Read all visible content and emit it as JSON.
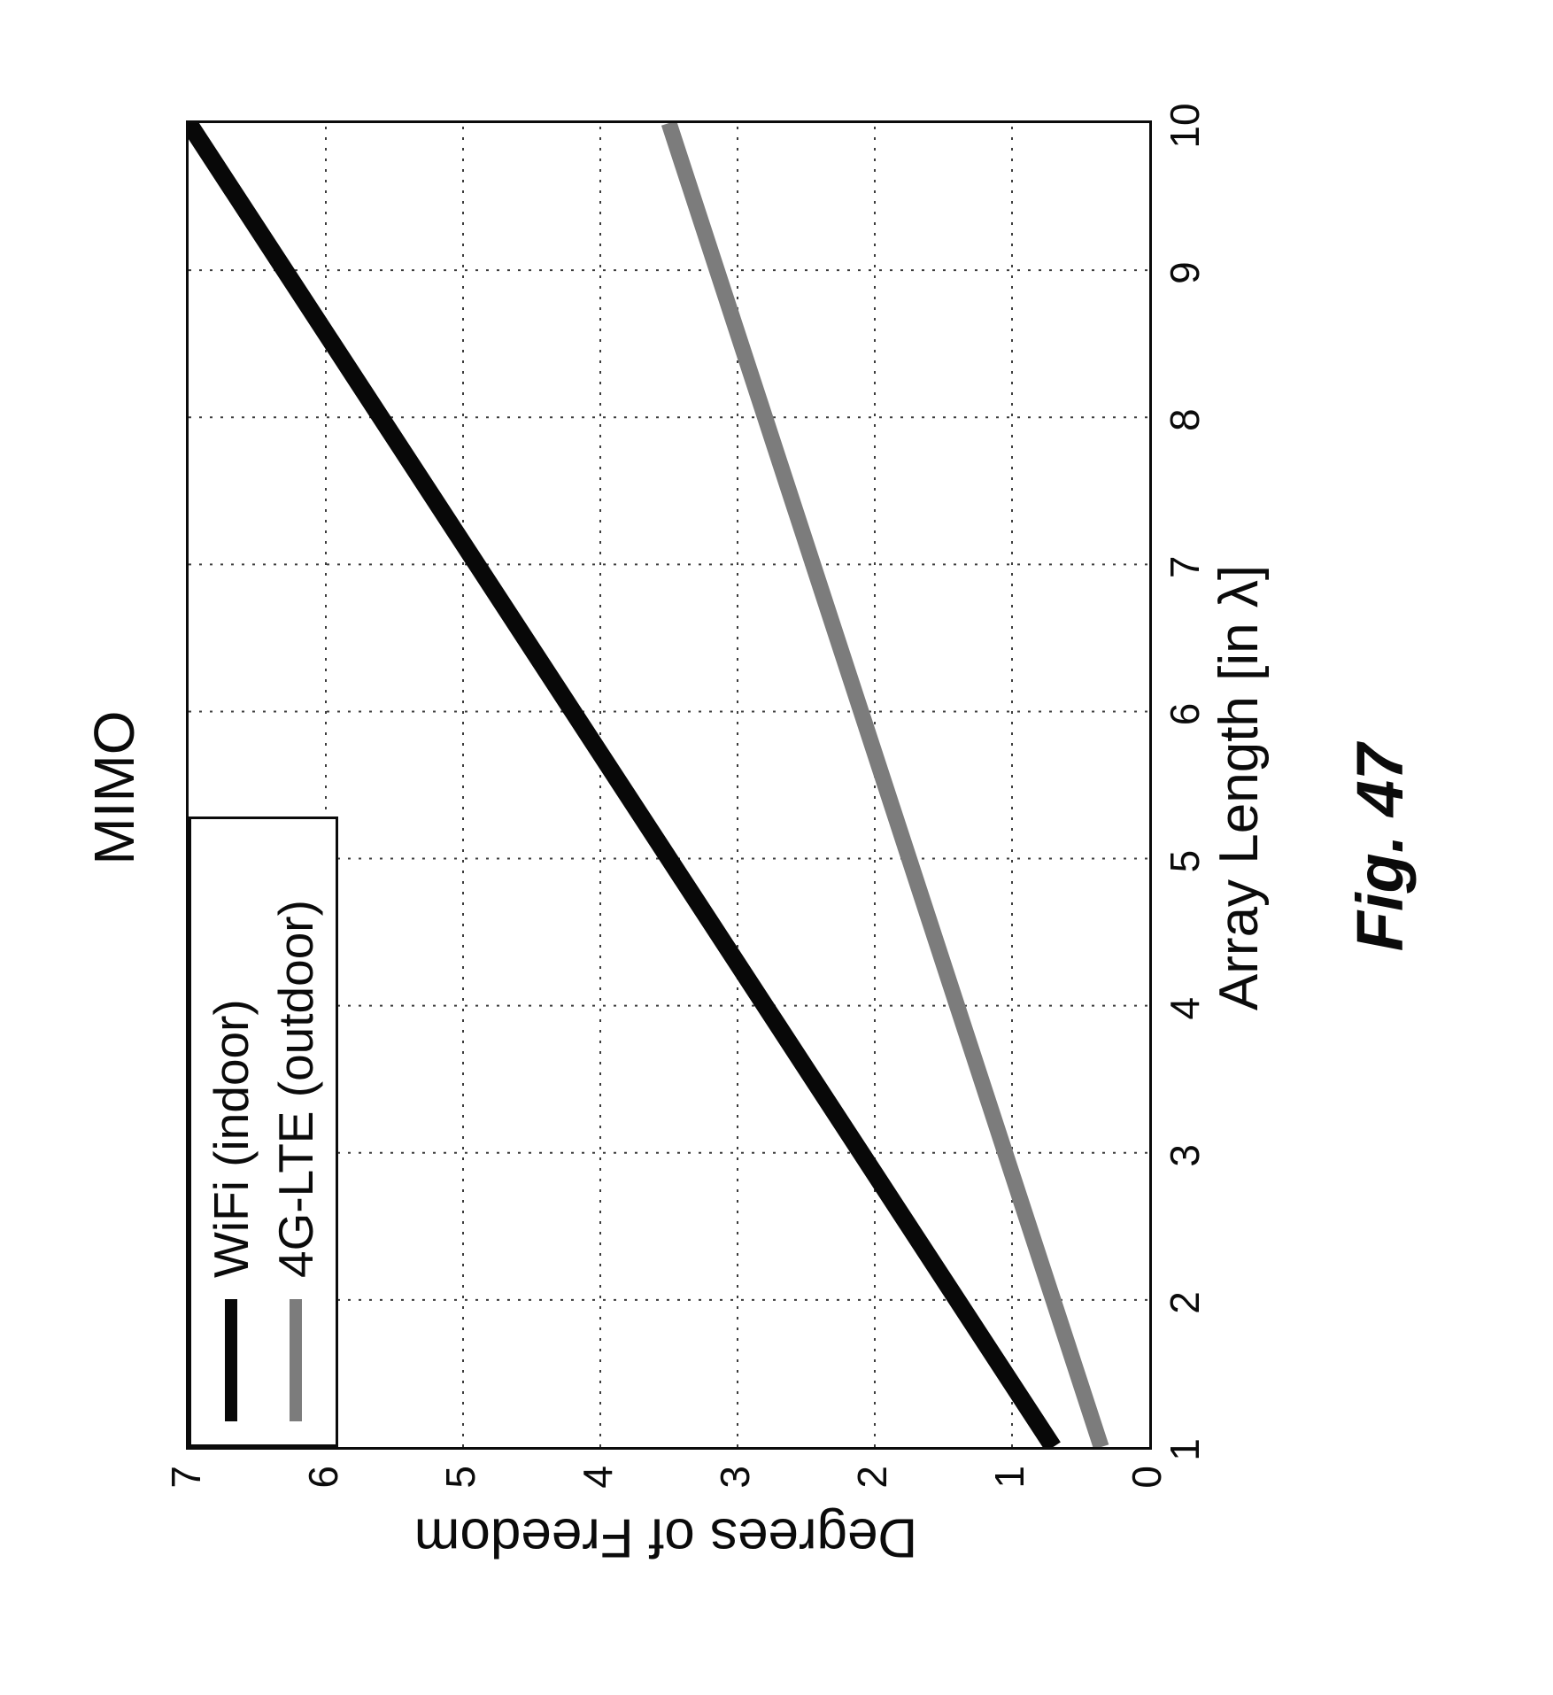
{
  "figure": {
    "caption": "Fig. 47"
  },
  "chart_data": {
    "type": "line",
    "title": "MIMO",
    "xlabel": "Array Length [in λ]",
    "ylabel": "Degrees of Freedom",
    "xlim": [
      1,
      10
    ],
    "ylim": [
      0,
      7
    ],
    "x_ticks": [
      1,
      2,
      3,
      4,
      5,
      6,
      7,
      8,
      9,
      10
    ],
    "y_ticks": [
      0,
      1,
      2,
      3,
      4,
      5,
      6,
      7
    ],
    "grid": true,
    "grid_style": "dotted",
    "legend_position": "upper-left",
    "x": [
      1,
      2,
      3,
      4,
      5,
      6,
      7,
      8,
      9,
      10
    ],
    "series": [
      {
        "name": "WiFi (indoor)",
        "color": "#080808",
        "values": [
          0.7,
          1.4,
          2.1,
          2.8,
          3.5,
          4.2,
          4.9,
          5.6,
          6.3,
          7.0
        ]
      },
      {
        "name": "4G-LTE (outdoor)",
        "color": "#7c7c7c",
        "values": [
          0.35,
          0.7,
          1.05,
          1.4,
          1.75,
          2.1,
          2.45,
          2.8,
          3.15,
          3.5
        ]
      }
    ],
    "page_rotation_degrees": -90
  }
}
